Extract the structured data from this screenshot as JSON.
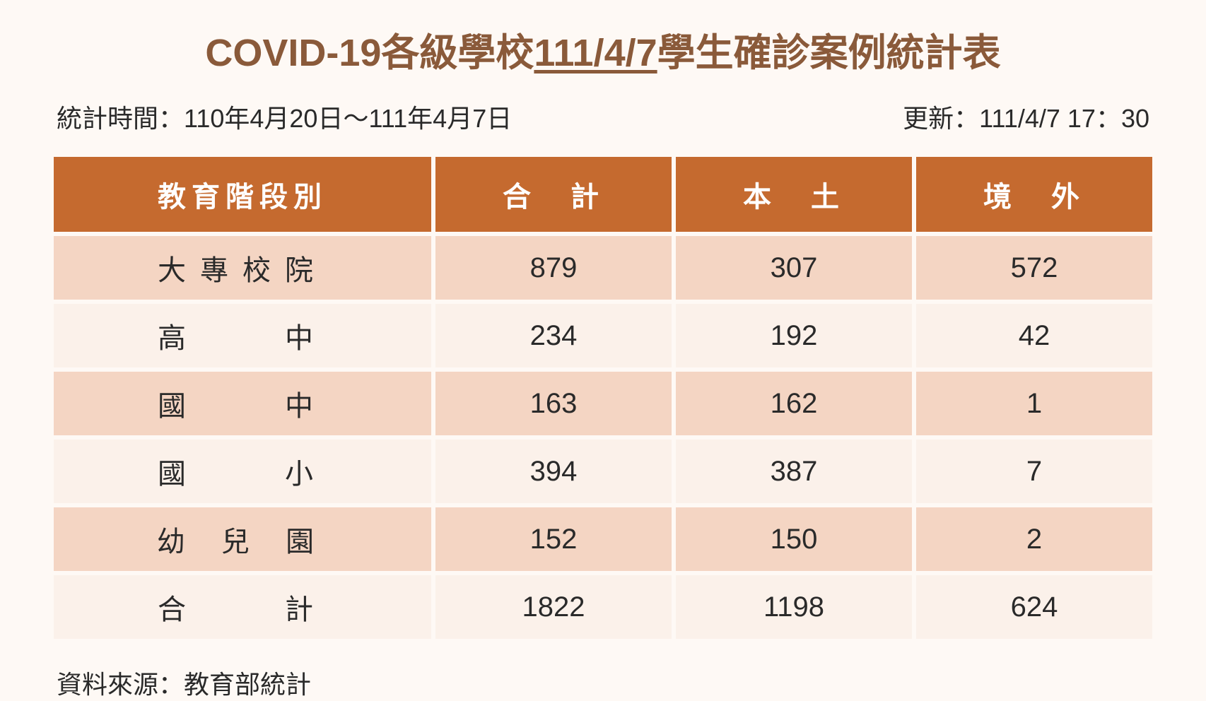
{
  "title": {
    "prefix": "COVID-19各級學校",
    "date_underline": "111/4/7",
    "suffix": "學生確診案例統計表",
    "color": "#8a5a3a",
    "fontsize": 54
  },
  "subtitle": {
    "left": "統計時間：110年4月20日～111年4月7日",
    "right": "更新：111/4/7  17：30",
    "fontsize": 36,
    "color": "#2a2a2a"
  },
  "table": {
    "type": "table",
    "header_bg": "#c56a2f",
    "header_color": "#ffffff",
    "row_bg_odd": "#f4d5c3",
    "row_bg_even": "#fbf1ea",
    "text_color": "#2a2a2a",
    "header_fontsize": 40,
    "cell_fontsize": 40,
    "columns": [
      "教育階段別",
      "合　計",
      "本　土",
      "境　外"
    ],
    "rows": [
      {
        "label": "大專校院",
        "total": "879",
        "local": "307",
        "overseas": "572"
      },
      {
        "label": "高　　中",
        "total": "234",
        "local": "192",
        "overseas": "42"
      },
      {
        "label": "國　　中",
        "total": "163",
        "local": "162",
        "overseas": "1"
      },
      {
        "label": "國　　小",
        "total": "394",
        "local": "387",
        "overseas": "7"
      },
      {
        "label": "幼 兒 園",
        "total": "152",
        "local": "150",
        "overseas": "2"
      },
      {
        "label": "合　　計",
        "total": "1822",
        "local": "1198",
        "overseas": "624"
      }
    ]
  },
  "footer": {
    "text": "資料來源：教育部統計",
    "fontsize": 36,
    "color": "#2a2a2a"
  },
  "page": {
    "background_color": "#fef9f5"
  }
}
